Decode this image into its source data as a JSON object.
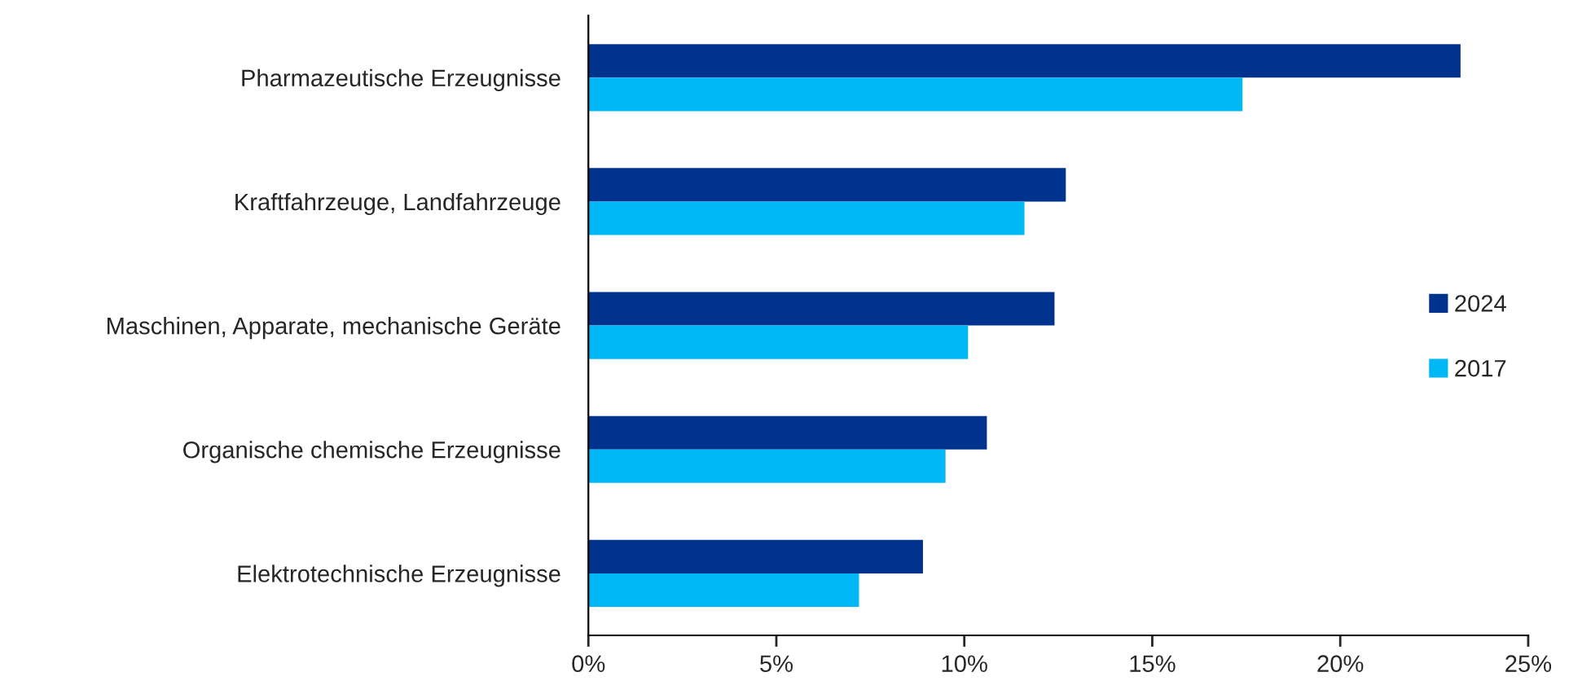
{
  "chart_data": {
    "type": "bar",
    "orientation": "horizontal",
    "categories": [
      "Pharmazeutische Erzeugnisse",
      "Kraftfahrzeuge, Landfahrzeuge",
      "Maschinen, Apparate, mechanische Geräte",
      "Organische chemische Erzeugnisse",
      "Elektrotechnische Erzeugnisse"
    ],
    "series": [
      {
        "name": "2024",
        "color": "#00338d",
        "values": [
          23.2,
          12.7,
          12.4,
          10.6,
          8.9
        ]
      },
      {
        "name": "2017",
        "color": "#00b8f5",
        "values": [
          17.4,
          11.6,
          10.1,
          9.5,
          7.2
        ]
      }
    ],
    "xlim": [
      0,
      25
    ],
    "xticks": [
      {
        "value": 0,
        "label": "0%"
      },
      {
        "value": 5,
        "label": "5%"
      },
      {
        "value": 10,
        "label": "10%"
      },
      {
        "value": 15,
        "label": "15%"
      },
      {
        "value": 20,
        "label": "20%"
      },
      {
        "value": 25,
        "label": "25%"
      }
    ],
    "grid": false,
    "legend": "right"
  }
}
